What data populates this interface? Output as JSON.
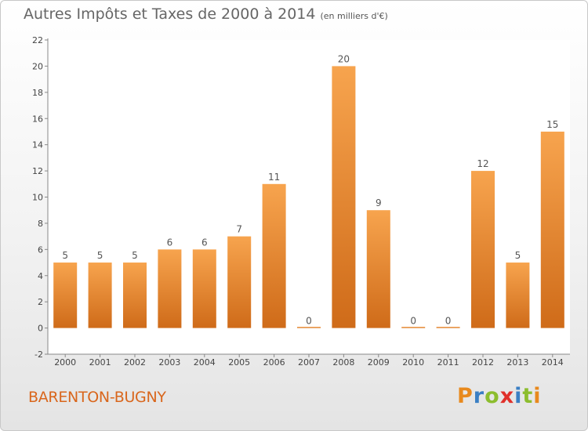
{
  "header": {
    "title": "Autres Impôts et Taxes de 2000 à 2014",
    "unit": "(en milliers d'€)"
  },
  "footer": {
    "commune": "BARENTON-BUGNY",
    "logo_letters": [
      "P",
      "r",
      "o",
      "x",
      "i",
      "t",
      "i"
    ],
    "logo_colors": [
      "#e8891d",
      "#3a7fc4",
      "#8cbd2e",
      "#e0302a",
      "#3a7fc4",
      "#8cbd2e",
      "#e8891d"
    ]
  },
  "colors": {
    "bar_light": "#f7a44e",
    "bar_dark": "#cf6b19",
    "axis": "#888888",
    "grid": "#d9d9d9"
  },
  "chart_data": {
    "type": "bar",
    "title": "Autres Impôts et Taxes de 2000 à 2014",
    "subtitle": "(en milliers d'€)",
    "xlabel": "",
    "ylabel": "",
    "categories": [
      "2000",
      "2001",
      "2002",
      "2003",
      "2004",
      "2005",
      "2006",
      "2007",
      "2008",
      "2009",
      "2010",
      "2011",
      "2012",
      "2013",
      "2014"
    ],
    "values": [
      5,
      5,
      5,
      6,
      6,
      7,
      11,
      0,
      20,
      9,
      0,
      0,
      12,
      5,
      15
    ],
    "ylim": [
      -2,
      22
    ],
    "yticks": [
      -2,
      0,
      2,
      4,
      6,
      8,
      10,
      12,
      14,
      16,
      18,
      20,
      22
    ],
    "grid": false
  }
}
